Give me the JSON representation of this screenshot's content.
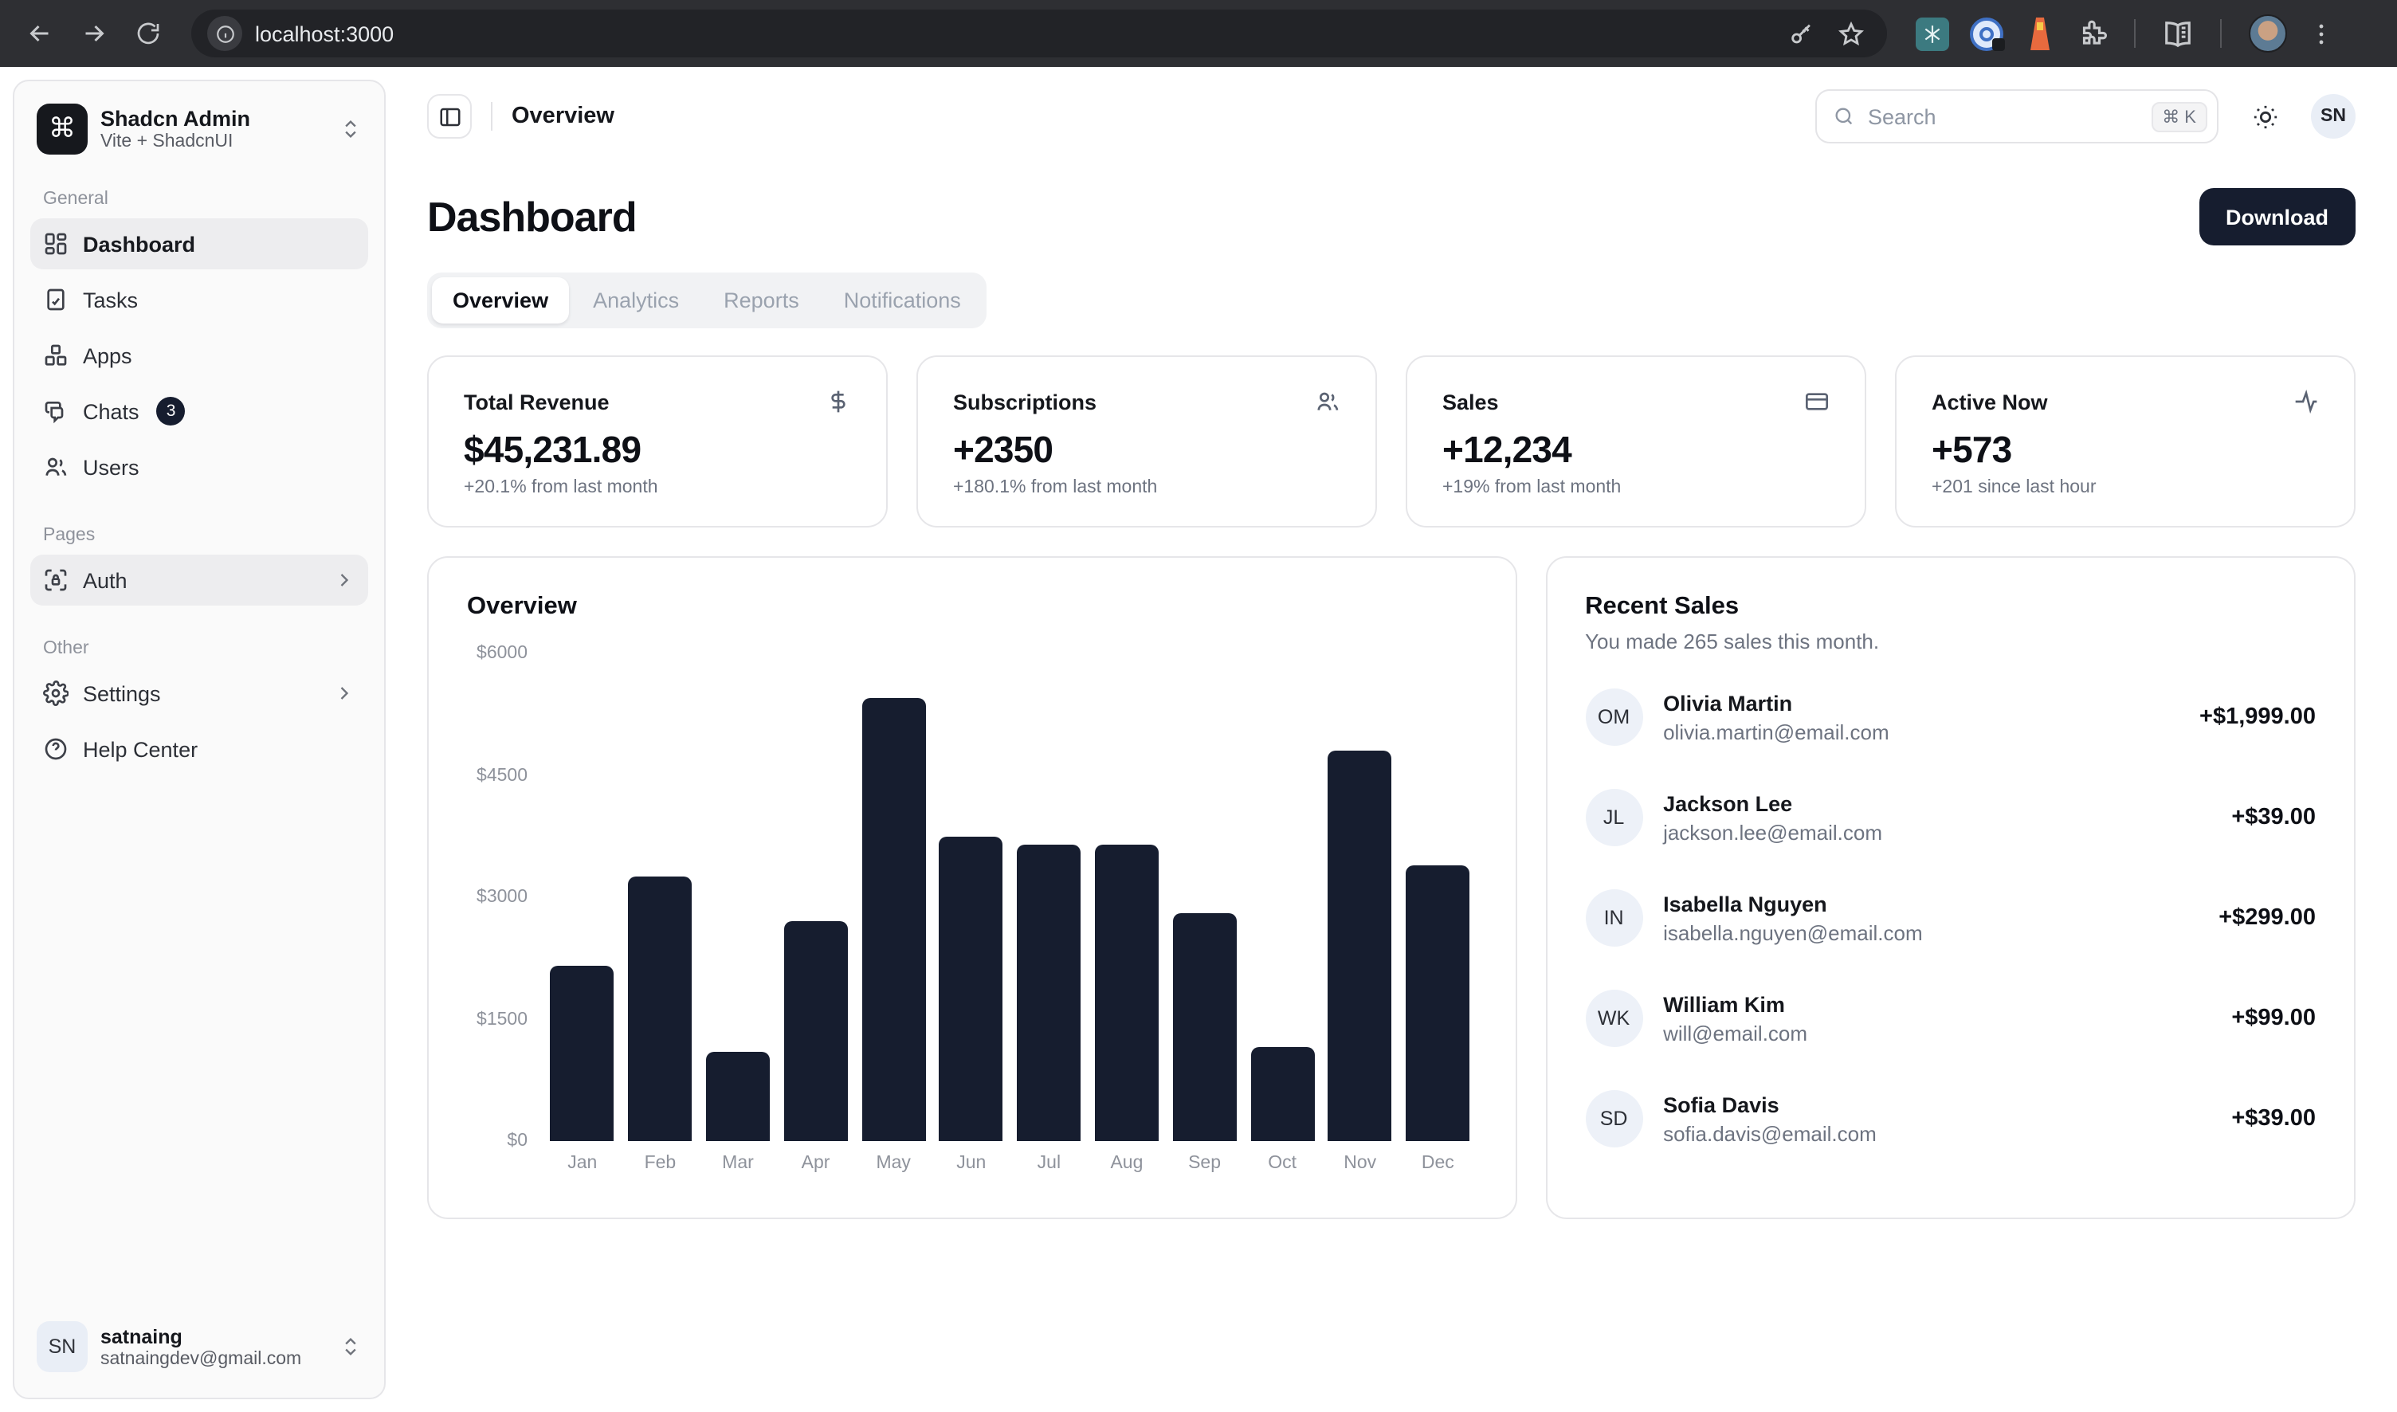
{
  "browser": {
    "url": "localhost:3000",
    "toolbar_icons": [
      "back-icon",
      "forward-icon",
      "refresh-icon",
      "site-info-icon",
      "password-key-icon",
      "bookmark-star-icon",
      "teal-extension-icon",
      "password-manager-extension-icon",
      "lighthouse-extension-icon",
      "extensions-puzzle-icon",
      "reading-list-icon",
      "profile-avatar",
      "browser-menu-icon"
    ]
  },
  "sidebar": {
    "team": {
      "logo_glyph": "⌘",
      "name": "Shadcn Admin",
      "subtitle": "Vite + ShadcnUI"
    },
    "sections": {
      "general": {
        "label": "General",
        "items": [
          {
            "label": "Dashboard"
          },
          {
            "label": "Tasks"
          },
          {
            "label": "Apps"
          },
          {
            "label": "Chats",
            "badge": "3"
          },
          {
            "label": "Users"
          }
        ]
      },
      "pages": {
        "label": "Pages",
        "items": [
          {
            "label": "Auth"
          }
        ]
      },
      "other": {
        "label": "Other",
        "items": [
          {
            "label": "Settings"
          },
          {
            "label": "Help Center"
          }
        ]
      }
    },
    "user": {
      "initials": "SN",
      "name": "satnaing",
      "email": "satnaingdev@gmail.com"
    }
  },
  "header": {
    "breadcrumb": "Overview",
    "search": {
      "placeholder": "Search",
      "shortcut": "⌘ K"
    },
    "avatar_initials": "SN"
  },
  "dashboard": {
    "title": "Dashboard",
    "download_label": "Download",
    "tabs": [
      {
        "label": "Overview",
        "active": true
      },
      {
        "label": "Analytics",
        "active": false
      },
      {
        "label": "Reports",
        "active": false
      },
      {
        "label": "Notifications",
        "active": false
      }
    ],
    "stats": [
      {
        "label": "Total Revenue",
        "icon": "dollar-sign-icon",
        "value": "$45,231.89",
        "delta": "+20.1% from last month"
      },
      {
        "label": "Subscriptions",
        "icon": "users-icon",
        "value": "+2350",
        "delta": "+180.1% from last month"
      },
      {
        "label": "Sales",
        "icon": "credit-card-icon",
        "value": "+12,234",
        "delta": "+19% from last month"
      },
      {
        "label": "Active Now",
        "icon": "activity-icon",
        "value": "+573",
        "delta": "+201 since last hour"
      }
    ]
  },
  "chart_data": {
    "type": "bar",
    "title": "Overview",
    "categories": [
      "Jan",
      "Feb",
      "Mar",
      "Apr",
      "May",
      "Jun",
      "Jul",
      "Aug",
      "Sep",
      "Oct",
      "Nov",
      "Dec"
    ],
    "values": [
      2150,
      3250,
      1100,
      2700,
      5450,
      3750,
      3650,
      3650,
      2800,
      1150,
      4800,
      3400
    ],
    "xlabel": "",
    "ylabel": "",
    "ylim": [
      0,
      6000
    ],
    "yticks": [
      "$6000",
      "$4500",
      "$3000",
      "$1500",
      "$0"
    ],
    "grid": false,
    "bar_color": "#161d2f"
  },
  "recent_sales": {
    "title": "Recent Sales",
    "subtitle": "You made 265 sales this month.",
    "items": [
      {
        "initials": "OM",
        "name": "Olivia Martin",
        "email": "olivia.martin@email.com",
        "amount": "+$1,999.00"
      },
      {
        "initials": "JL",
        "name": "Jackson Lee",
        "email": "jackson.lee@email.com",
        "amount": "+$39.00"
      },
      {
        "initials": "IN",
        "name": "Isabella Nguyen",
        "email": "isabella.nguyen@email.com",
        "amount": "+$299.00"
      },
      {
        "initials": "WK",
        "name": "William Kim",
        "email": "will@email.com",
        "amount": "+$99.00"
      },
      {
        "initials": "SD",
        "name": "Sofia Davis",
        "email": "sofia.davis@email.com",
        "amount": "+$39.00"
      }
    ]
  }
}
